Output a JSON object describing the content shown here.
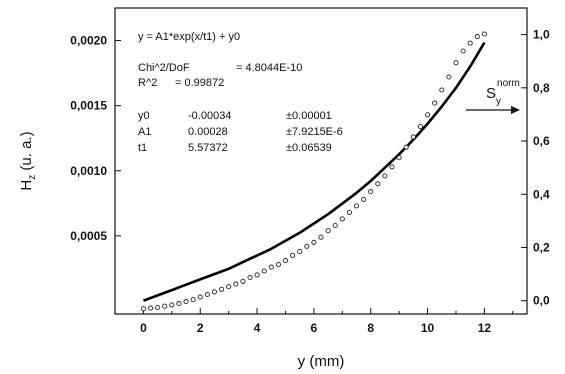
{
  "chart_data": {
    "type": "scatter",
    "xlabel": "y (mm)",
    "ylabel_main": "H",
    "ylabel_sub": "z",
    "ylabel_suffix": " (u. a.)",
    "xlim": [
      -1,
      13.5
    ],
    "ylim_left": [
      -0.0001,
      0.00225
    ],
    "ylim_right": [
      -0.05,
      1.1
    ],
    "x_ticks": [
      "0",
      "2",
      "4",
      "6",
      "8",
      "10",
      "12"
    ],
    "x_tick_values": [
      0,
      2,
      4,
      6,
      8,
      10,
      12
    ],
    "y_left_ticks": [
      "0,0005",
      "0,0010",
      "0,0015",
      "0,0020"
    ],
    "y_left_tick_values": [
      0.0005,
      0.001,
      0.0015,
      0.002
    ],
    "y_right_ticks": [
      "0,0",
      "0,2",
      "0,4",
      "0,6",
      "0,8",
      "1,0"
    ],
    "y_right_tick_values": [
      0.0,
      0.2,
      0.4,
      0.6,
      0.8,
      1.0
    ],
    "grid": false,
    "series": [
      {
        "axis": "left",
        "style": "open-circles",
        "x": [
          0,
          0.25,
          0.5,
          0.75,
          1,
          1.25,
          1.5,
          1.75,
          2,
          2.25,
          2.5,
          2.75,
          3,
          3.25,
          3.5,
          3.75,
          4,
          4.25,
          4.5,
          4.75,
          5,
          5.25,
          5.5,
          5.75,
          6,
          6.25,
          6.5,
          6.75,
          7,
          7.25,
          7.5,
          7.75,
          8,
          8.25,
          8.5,
          8.75,
          9,
          9.25,
          9.5,
          9.75,
          10,
          10.25,
          10.5,
          10.75,
          11,
          11.25,
          11.5,
          11.75,
          12
        ],
        "y": [
          -6e-05,
          -5.5e-05,
          -5e-05,
          -4e-05,
          -3e-05,
          -2e-05,
          -5e-06,
          1e-05,
          3e-05,
          5e-05,
          7e-05,
          9e-05,
          0.00011,
          0.00013,
          0.00015,
          0.00018,
          0.0002,
          0.00023,
          0.00026,
          0.00028,
          0.00031,
          0.00035,
          0.00038,
          0.00042,
          0.00045,
          0.00049,
          0.00054,
          0.00058,
          0.00063,
          0.00068,
          0.00073,
          0.00078,
          0.00084,
          0.0009,
          0.00096,
          0.00103,
          0.0011,
          0.00118,
          0.00126,
          0.00134,
          0.00143,
          0.00152,
          0.00162,
          0.00172,
          0.00183,
          0.00192,
          0.00198,
          0.00203,
          0.00205
        ]
      },
      {
        "axis": "right",
        "style": "thick-line",
        "x": [
          0,
          0.5,
          1,
          1.5,
          2,
          2.5,
          3,
          3.5,
          4,
          4.5,
          5,
          5.5,
          6,
          6.5,
          7,
          7.5,
          8,
          8.5,
          9,
          9.5,
          10,
          10.5,
          11,
          11.5,
          12
        ],
        "y": [
          0.0,
          0.02,
          0.04,
          0.06,
          0.08,
          0.1,
          0.12,
          0.145,
          0.17,
          0.195,
          0.225,
          0.255,
          0.29,
          0.325,
          0.365,
          0.405,
          0.45,
          0.5,
          0.55,
          0.605,
          0.665,
          0.73,
          0.8,
          0.88,
          0.97
        ]
      }
    ],
    "fit_box": {
      "equation": "y = A1*exp(x/t1) + y0",
      "chi_label": "Chi^2/DoF",
      "chi_value": "= 4.8044E-10",
      "r2_label": "R^2",
      "r2_value": "=  0.99872",
      "params": [
        {
          "name": "y0",
          "value": "-0.00034",
          "error": "±0.00001"
        },
        {
          "name": "A1",
          "value": "0.00028",
          "error": "±7.9215E-6"
        },
        {
          "name": "t1",
          "value": "5.57372",
          "error": "±0.06539"
        }
      ]
    },
    "annotation": {
      "main": "S",
      "sub": "y",
      "sup": "norm",
      "arrow": "right"
    }
  }
}
